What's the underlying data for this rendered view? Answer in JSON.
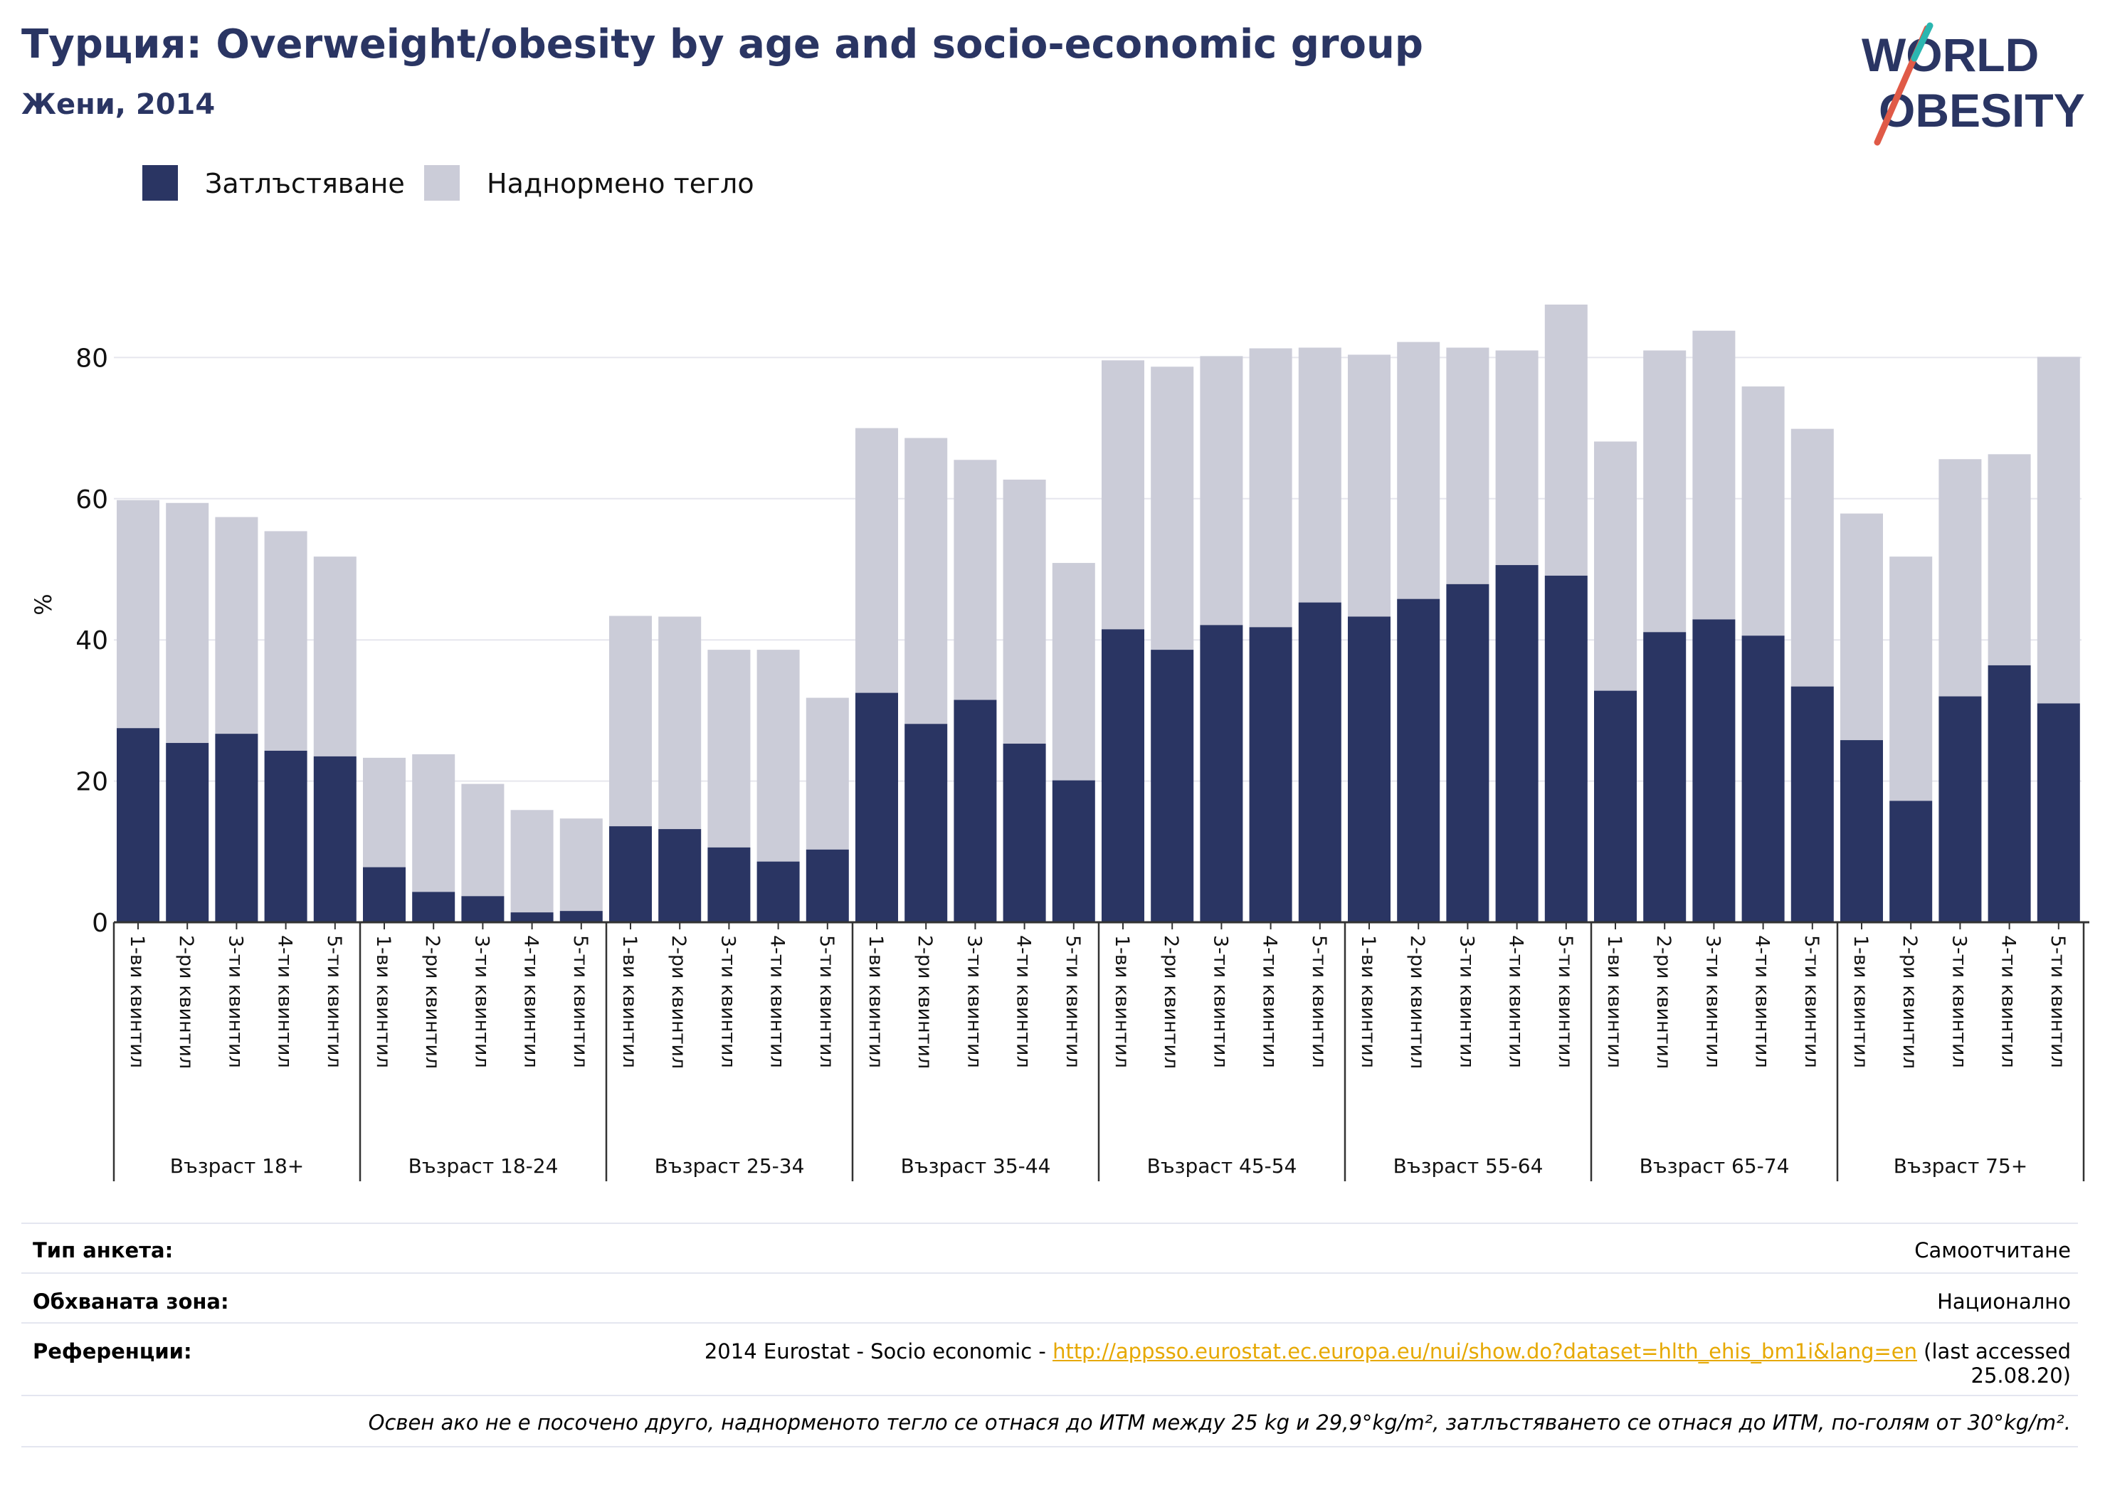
{
  "header": {
    "title": "Турция: Overweight/obesity by age and socio-economic group",
    "subtitle": "Жени, 2014"
  },
  "logo": {
    "line1": "WORLD",
    "line2": "OBESITY"
  },
  "colors": {
    "obesity": "#2a3563",
    "overweight": "#cbccd8",
    "grid": "#e6e6ee",
    "axis": "#333333",
    "link": "#e6a800"
  },
  "chart_data": {
    "type": "bar",
    "stacked": true,
    "ylabel": "%",
    "xlabel": "",
    "ylim": [
      0,
      90
    ],
    "yticks": [
      0,
      20,
      40,
      60,
      80
    ],
    "grid": true,
    "legend_position": "top-left",
    "legend": [
      "Затлъстяване",
      "Наднормено тегло"
    ],
    "groups": [
      {
        "label": "Възраст 18+",
        "categories": [
          "1-ви квинтил",
          "2-ри квинтил",
          "3-ти квинтил",
          "4-ти квинтил",
          "5-ти квинтил"
        ],
        "obesity": [
          27.5,
          25.4,
          26.7,
          24.3,
          23.5
        ],
        "total": [
          59.8,
          59.4,
          57.4,
          55.4,
          51.8
        ]
      },
      {
        "label": "Възраст 18-24",
        "categories": [
          "1-ви квинтил",
          "2-ри квинтил",
          "3-ти квинтил",
          "4-ти квинтил",
          "5-ти квинтил"
        ],
        "obesity": [
          7.8,
          4.3,
          3.7,
          1.4,
          1.6
        ],
        "total": [
          23.3,
          23.8,
          19.6,
          15.9,
          14.7
        ]
      },
      {
        "label": "Възраст 25-34",
        "categories": [
          "1-ви квинтил",
          "2-ри квинтил",
          "3-ти квинтил",
          "4-ти квинтил",
          "5-ти квинтил"
        ],
        "obesity": [
          13.6,
          13.2,
          10.6,
          8.6,
          10.3
        ],
        "total": [
          43.4,
          43.3,
          38.6,
          38.6,
          31.8
        ]
      },
      {
        "label": "Възраст 35-44",
        "categories": [
          "1-ви квинтил",
          "2-ри квинтил",
          "3-ти квинтил",
          "4-ти квинтил",
          "5-ти квинтил"
        ],
        "obesity": [
          32.5,
          28.1,
          31.5,
          25.3,
          20.1
        ],
        "total": [
          70.0,
          68.6,
          65.5,
          62.7,
          50.9
        ]
      },
      {
        "label": "Възраст 45-54",
        "categories": [
          "1-ви квинтил",
          "2-ри квинтил",
          "3-ти квинтил",
          "4-ти квинтил",
          "5-ти квинтил"
        ],
        "obesity": [
          41.5,
          38.6,
          42.1,
          41.8,
          45.3
        ],
        "total": [
          79.6,
          78.7,
          80.2,
          81.3,
          81.4
        ]
      },
      {
        "label": "Възраст 55-64",
        "categories": [
          "1-ви квинтил",
          "2-ри квинтил",
          "3-ти квинтил",
          "4-ти квинтил",
          "5-ти квинтил"
        ],
        "obesity": [
          43.3,
          45.8,
          47.9,
          50.6,
          49.1
        ],
        "total": [
          80.4,
          82.2,
          81.4,
          81.0,
          87.5
        ]
      },
      {
        "label": "Възраст 65-74",
        "categories": [
          "1-ви квинтил",
          "2-ри квинтил",
          "3-ти квинтил",
          "4-ти квинтил",
          "5-ти квинтил"
        ],
        "obesity": [
          32.8,
          41.1,
          42.9,
          40.6,
          33.4
        ],
        "total": [
          68.1,
          81.0,
          83.8,
          75.9,
          69.9
        ]
      },
      {
        "label": "Възраст 75+",
        "categories": [
          "1-ви квинтил",
          "2-ри квинтил",
          "3-ти квинтил",
          "4-ти квинтил",
          "5-ти квинтил"
        ],
        "obesity": [
          25.8,
          17.2,
          32.0,
          36.4,
          31.0
        ],
        "total": [
          57.9,
          51.8,
          65.6,
          66.3,
          80.1
        ]
      }
    ]
  },
  "info": {
    "survey_type_label": "Тип анкета:",
    "survey_type_value": "Самоотчитане",
    "coverage_label": "Обхваната зона:",
    "coverage_value": "Национално",
    "references_label": "Референции:",
    "references_prefix": "2014 Eurostat - Socio economic - ",
    "references_link": "http://appsso.eurostat.ec.europa.eu/nui/show.do?dataset=hlth_ehis_bm1i&lang=en",
    "references_suffix": " (last accessed",
    "references_date": "25.08.20)",
    "note": "Освен ако не е посочено друго, наднорменото тегло се отнася до ИТМ между 25 kg и 29,9°kg/m², затлъстяването се отнася до ИТМ, по-голям от 30°kg/m²."
  }
}
